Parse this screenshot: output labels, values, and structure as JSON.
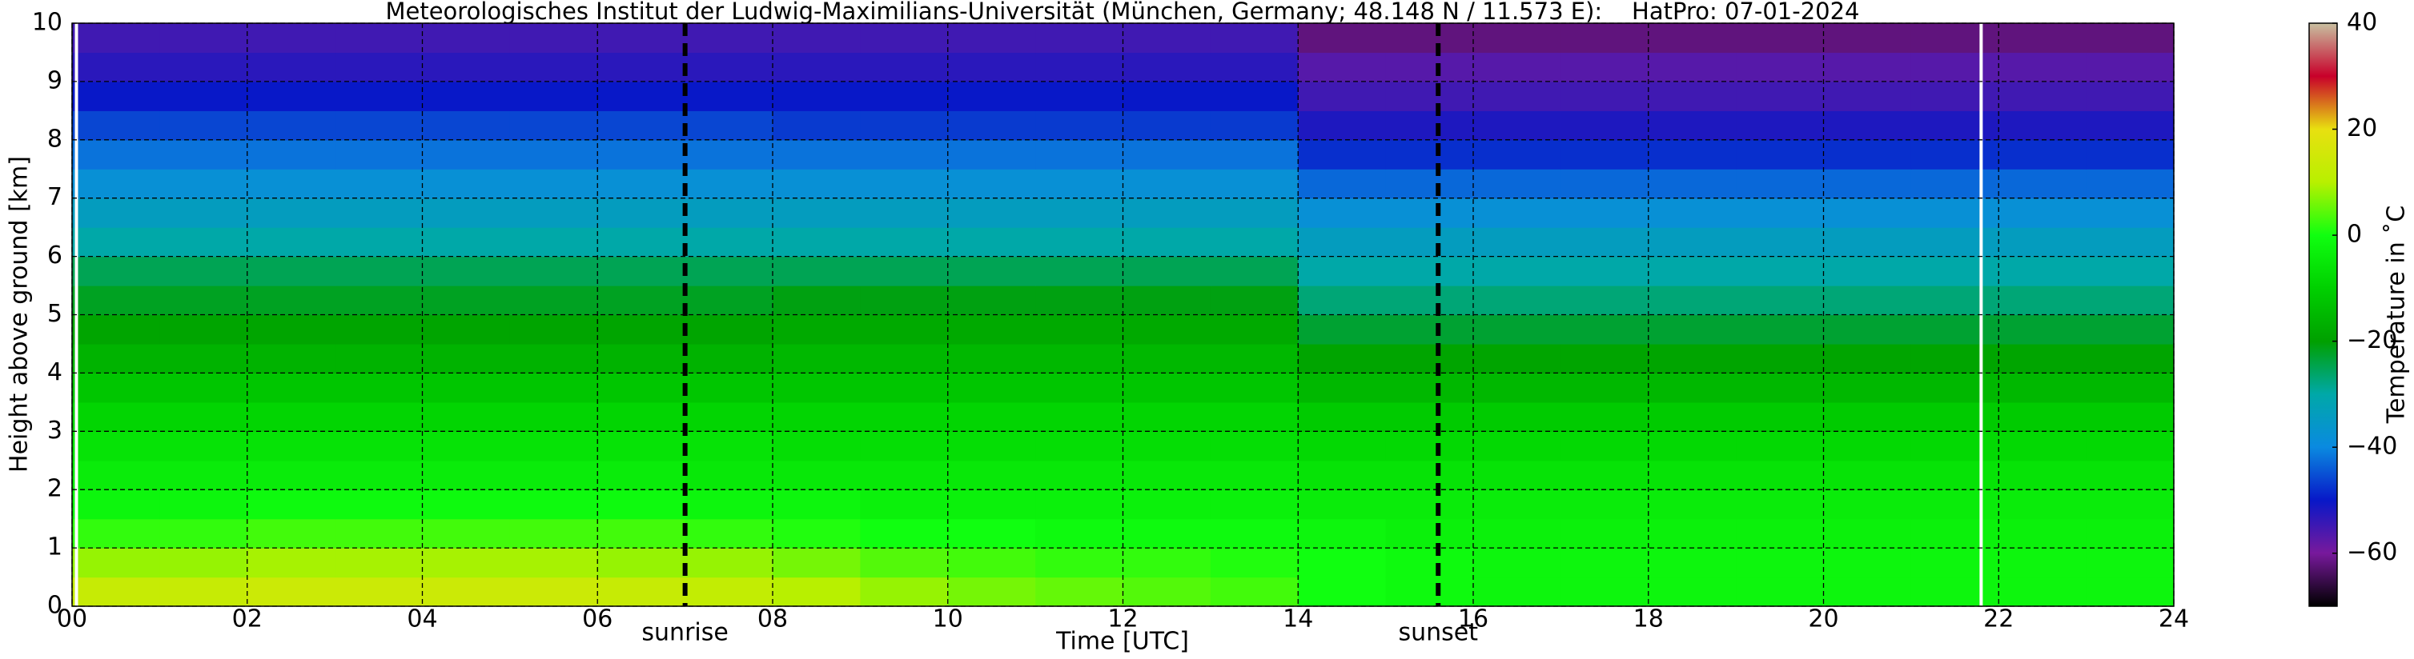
{
  "chart_data": {
    "type": "heatmap",
    "title": "Meteorologisches Institut der Ludwig-Maximilians-Universität (München, Germany; 48.148 N / 11.573 E):    HatPro: 07-01-2024",
    "xlabel": "Time [UTC]",
    "ylabel": "Height above ground [km]",
    "colorbar_label": "Temperature in ˚C",
    "xlim": [
      0,
      24
    ],
    "ylim": [
      0,
      10
    ],
    "zlim": [
      -70,
      40
    ],
    "xticks": [
      {
        "value": 0,
        "label": "00"
      },
      {
        "value": 2,
        "label": "02"
      },
      {
        "value": 4,
        "label": "04"
      },
      {
        "value": 6,
        "label": "06"
      },
      {
        "value": 8,
        "label": "08"
      },
      10,
      12,
      14,
      16,
      18,
      20,
      22,
      24
    ],
    "yticks": [
      0,
      1,
      2,
      3,
      4,
      5,
      6,
      7,
      8,
      9,
      10
    ],
    "zticks": [
      {
        "value": -60,
        "label": "−60"
      },
      {
        "value": -40,
        "label": "−40"
      },
      {
        "value": -20,
        "label": "−20"
      },
      0,
      20,
      40
    ],
    "grid": true,
    "colorscale": [
      "#000000",
      "#78199c",
      "#0818c8",
      "#0a8ae0",
      "#00a8a8",
      "#00a000",
      "#00d000",
      "#10ff10",
      "#b8f000",
      "#e8e010",
      "#c8002a",
      "#c8c0a0"
    ],
    "annotations": [
      {
        "text": "sunrise",
        "x": 7.0
      },
      {
        "text": "sunset",
        "x": 15.6
      }
    ],
    "data_gaps": [
      0.05,
      21.8
    ],
    "x": [
      0.5,
      1.5,
      2.5,
      3.5,
      4.5,
      5.5,
      6.5,
      7.5,
      8.5,
      9.5,
      10.5,
      11.5,
      12.5,
      13.5,
      14.5,
      15.5,
      16.5,
      17.5,
      18.5,
      19.5,
      20.5,
      21.5,
      22.5,
      23.5
    ],
    "y": [
      0.25,
      0.75,
      1.25,
      1.75,
      2.25,
      2.75,
      3.25,
      3.75,
      4.25,
      4.75,
      5.25,
      5.75,
      6.25,
      6.75,
      7.25,
      7.75,
      8.25,
      8.75,
      9.25,
      9.75
    ],
    "z": [
      [
        13,
        13,
        14,
        14,
        14,
        14,
        13,
        12,
        10,
        8,
        6,
        5,
        4,
        3,
        0,
        -1,
        -2,
        -2,
        -2,
        -2,
        -2,
        -2,
        -2,
        -2
      ],
      [
        8,
        8,
        9,
        9,
        9,
        9,
        8,
        8,
        6,
        4,
        3,
        2,
        2,
        1,
        0,
        -1,
        -2,
        -2,
        -2,
        -2,
        -2,
        -2,
        -2,
        -2
      ],
      [
        2,
        2,
        3,
        3,
        3,
        3,
        3,
        2,
        1,
        0,
        0,
        -1,
        -1,
        -1,
        -2,
        -3,
        -3,
        -3,
        -3,
        -3,
        -3,
        -3,
        -3,
        -3
      ],
      [
        -2,
        -2,
        -1,
        -1,
        -1,
        -1,
        -1,
        -2,
        -2,
        -3,
        -3,
        -3,
        -3,
        -3,
        -4,
        -4,
        -4,
        -4,
        -4,
        -4,
        -4,
        -4,
        -4,
        -4
      ],
      [
        -4,
        -4,
        -4,
        -4,
        -4,
        -4,
        -4,
        -5,
        -5,
        -5,
        -5,
        -5,
        -5,
        -5,
        -6,
        -6,
        -6,
        -6,
        -6,
        -6,
        -6,
        -6,
        -6,
        -6
      ],
      [
        -6,
        -6,
        -6,
        -6,
        -6,
        -6,
        -6,
        -6,
        -7,
        -7,
        -7,
        -7,
        -7,
        -7,
        -8,
        -8,
        -8,
        -8,
        -8,
        -8,
        -8,
        -8,
        -8,
        -8
      ],
      [
        -9,
        -9,
        -9,
        -9,
        -9,
        -9,
        -9,
        -9,
        -9,
        -9,
        -9,
        -9,
        -9,
        -9,
        -11,
        -11,
        -11,
        -11,
        -11,
        -11,
        -11,
        -11,
        -11,
        -11
      ],
      [
        -12,
        -12,
        -12,
        -12,
        -12,
        -12,
        -12,
        -12,
        -12,
        -12,
        -12,
        -12,
        -12,
        -12,
        -15,
        -15,
        -15,
        -15,
        -15,
        -15,
        -15,
        -15,
        -15,
        -15
      ],
      [
        -16,
        -16,
        -16,
        -16,
        -16,
        -16,
        -16,
        -16,
        -15,
        -15,
        -15,
        -15,
        -15,
        -15,
        -19,
        -19,
        -19,
        -19,
        -19,
        -19,
        -19,
        -19,
        -19,
        -19
      ],
      [
        -19,
        -19,
        -19,
        -19,
        -19,
        -19,
        -19,
        -19,
        -18,
        -18,
        -18,
        -18,
        -18,
        -18,
        -23,
        -23,
        -23,
        -23,
        -23,
        -23,
        -23,
        -23,
        -23,
        -23
      ],
      [
        -22,
        -22,
        -22,
        -22,
        -22,
        -22,
        -22,
        -22,
        -21,
        -21,
        -21,
        -21,
        -21,
        -21,
        -27,
        -27,
        -27,
        -27,
        -27,
        -27,
        -27,
        -27,
        -27,
        -27
      ],
      [
        -25,
        -25,
        -25,
        -25,
        -25,
        -25,
        -25,
        -25,
        -25,
        -25,
        -25,
        -25,
        -25,
        -25,
        -30,
        -30,
        -30,
        -30,
        -30,
        -30,
        -30,
        -30,
        -30,
        -30
      ],
      [
        -30,
        -30,
        -30,
        -30,
        -30,
        -30,
        -30,
        -30,
        -30,
        -30,
        -30,
        -30,
        -30,
        -30,
        -34,
        -34,
        -34,
        -34,
        -34,
        -34,
        -34,
        -34,
        -34,
        -34
      ],
      [
        -34,
        -34,
        -34,
        -34,
        -34,
        -34,
        -34,
        -34,
        -34,
        -34,
        -34,
        -34,
        -34,
        -34,
        -38,
        -38,
        -38,
        -38,
        -38,
        -38,
        -38,
        -38,
        -38,
        -38
      ],
      [
        -38,
        -38,
        -38,
        -38,
        -38,
        -38,
        -38,
        -38,
        -38,
        -38,
        -38,
        -38,
        -38,
        -38,
        -43,
        -43,
        -43,
        -43,
        -43,
        -43,
        -43,
        -43,
        -43,
        -43
      ],
      [
        -42,
        -42,
        -42,
        -42,
        -42,
        -42,
        -42,
        -42,
        -42,
        -42,
        -42,
        -42,
        -42,
        -42,
        -48,
        -48,
        -48,
        -48,
        -48,
        -48,
        -48,
        -48,
        -48,
        -48
      ],
      [
        -46,
        -46,
        -46,
        -46,
        -46,
        -46,
        -46,
        -46,
        -47,
        -47,
        -47,
        -47,
        -47,
        -47,
        -52,
        -52,
        -52,
        -52,
        -52,
        -52,
        -52,
        -52,
        -52,
        -52
      ],
      [
        -50,
        -50,
        -50,
        -50,
        -50,
        -50,
        -50,
        -50,
        -50,
        -50,
        -50,
        -50,
        -50,
        -50,
        -55,
        -55,
        -55,
        -55,
        -55,
        -55,
        -55,
        -55,
        -55,
        -55
      ],
      [
        -53,
        -53,
        -53,
        -53,
        -53,
        -53,
        -53,
        -53,
        -53,
        -53,
        -53,
        -53,
        -53,
        -53,
        -57,
        -57,
        -57,
        -57,
        -57,
        -57,
        -57,
        -57,
        -57,
        -57
      ],
      [
        -55,
        -55,
        -55,
        -55,
        -55,
        -55,
        -55,
        -55,
        -55,
        -55,
        -55,
        -55,
        -55,
        -55,
        -62,
        -62,
        -62,
        -62,
        -62,
        -62,
        -62,
        -62,
        -62,
        -62
      ]
    ]
  }
}
